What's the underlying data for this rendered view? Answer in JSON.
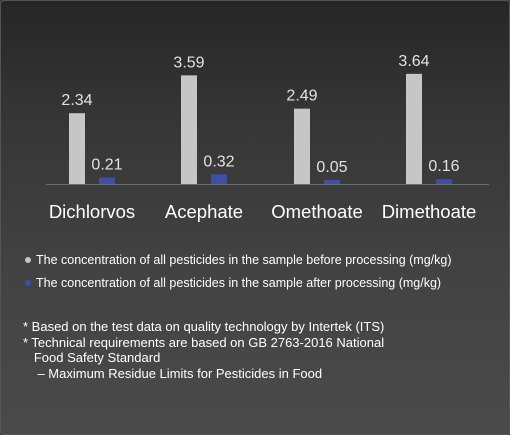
{
  "colors": {
    "before": "#c6c6c6",
    "after": "#3f4fa6",
    "axis": "#6a6a6a",
    "text": "#ffffff",
    "value_text": "#e2e2e2"
  },
  "chart_data": {
    "type": "bar",
    "categories": [
      "Dichlorvos",
      "Acephate",
      "Omethoate",
      "Dimethoate"
    ],
    "series": [
      {
        "name": "The concentration of all pesticides in the sample before processing (mg/kg)",
        "values": [
          2.34,
          3.59,
          2.49,
          3.64
        ],
        "color": "#c6c6c6"
      },
      {
        "name": "The concentration of all pesticides in the sample after processing (mg/kg)",
        "values": [
          0.21,
          0.32,
          0.05,
          0.16
        ],
        "color": "#3f4fa6"
      }
    ],
    "value_labels": [
      [
        "2.34",
        "3.59",
        "2.49",
        "3.64"
      ],
      [
        "0.21",
        "0.32",
        "0.05",
        "0.16"
      ]
    ],
    "ylim": [
      0,
      3.8
    ],
    "grid": false,
    "legend_position": "bottom"
  },
  "legend": {
    "before": "The concentration of all pesticides in the sample before processing (mg/kg)",
    "after": "The concentration of all pesticides in the sample after processing (mg/kg)"
  },
  "notes": {
    "line1": "* Based on the test data on quality technology by Intertek (ITS)",
    "line2": "* Technical requirements are based on GB 2763-2016 National",
    "line3": "   Food Safety Standard",
    "line4": "    – Maximum Residue Limits for Pesticides in Food"
  }
}
